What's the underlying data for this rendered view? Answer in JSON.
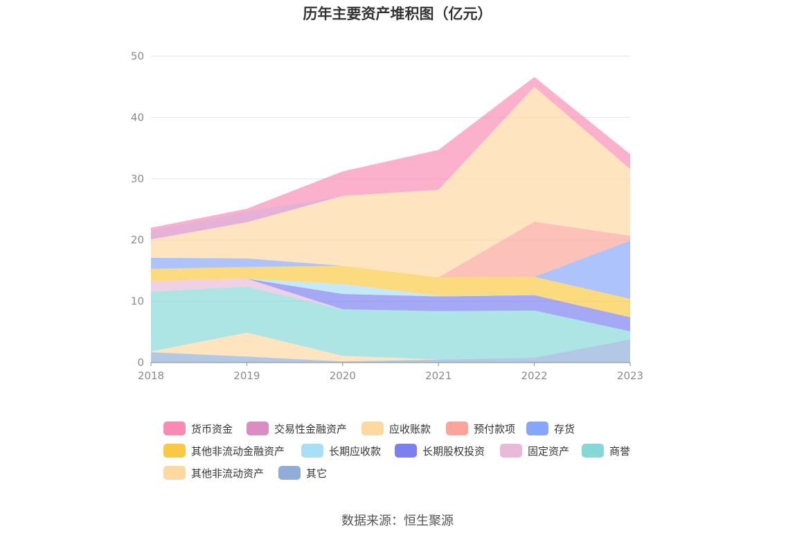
{
  "chart_data": {
    "type": "area",
    "stacked": true,
    "title": "历年主要资产堆积图（亿元）",
    "x": [
      "2018",
      "2019",
      "2020",
      "2021",
      "2022",
      "2023"
    ],
    "ylim": [
      0,
      50
    ],
    "yticks": [
      0,
      10,
      20,
      30,
      40,
      50
    ],
    "grid": true,
    "legend_position": "bottom",
    "series": [
      {
        "name": "其它",
        "color": "#8eaed8",
        "values": [
          1.7,
          1.0,
          0.2,
          0.5,
          0.8,
          3.8
        ]
      },
      {
        "name": "其他非流动资产",
        "color": "#fdd9a0",
        "values": [
          0.1,
          3.9,
          0.9,
          0.0,
          0.0,
          0.0
        ]
      },
      {
        "name": "商誉",
        "color": "#86d8d8",
        "values": [
          9.8,
          7.5,
          7.6,
          7.9,
          7.7,
          1.3
        ]
      },
      {
        "name": "固定资产",
        "color": "#e8b9d8",
        "values": [
          1.7,
          1.3,
          0.0,
          0.0,
          0.0,
          0.0
        ]
      },
      {
        "name": "长期股权投资",
        "color": "#7b7ff0",
        "values": [
          0.0,
          0.0,
          2.5,
          2.4,
          2.5,
          2.3
        ]
      },
      {
        "name": "长期应收款",
        "color": "#a8dff7",
        "values": [
          0.0,
          0.0,
          1.6,
          0.1,
          0.0,
          0.0
        ]
      },
      {
        "name": "其他非流动金融资产",
        "color": "#fbc841",
        "values": [
          2.0,
          1.9,
          3.0,
          3.0,
          3.0,
          3.0
        ]
      },
      {
        "name": "存货",
        "color": "#85a6fb",
        "values": [
          1.8,
          1.4,
          0.0,
          0.0,
          0.0,
          9.5
        ]
      },
      {
        "name": "预付款项",
        "color": "#fba59a",
        "values": [
          0.0,
          0.0,
          0.0,
          0.0,
          9.0,
          0.8
        ]
      },
      {
        "name": "应收账款",
        "color": "#fdd9a0",
        "values": [
          3.0,
          5.9,
          11.4,
          14.3,
          22.0,
          10.9
        ]
      },
      {
        "name": "交易性金融资产",
        "color": "#da8cc3",
        "values": [
          1.5,
          1.8,
          0.0,
          0.0,
          0.0,
          0.0
        ]
      },
      {
        "name": "货币资金",
        "color": "#f98ab4",
        "values": [
          0.4,
          0.4,
          4.0,
          6.5,
          1.6,
          2.4
        ]
      }
    ],
    "legend_order": [
      "货币资金",
      "交易性金融资产",
      "应收账款",
      "预付款项",
      "存货",
      "其他非流动金融资产",
      "长期应收款",
      "长期股权投资",
      "固定资产",
      "商誉",
      "其他非流动资产",
      "其它"
    ]
  },
  "source_text": "数据来源：恒生聚源"
}
